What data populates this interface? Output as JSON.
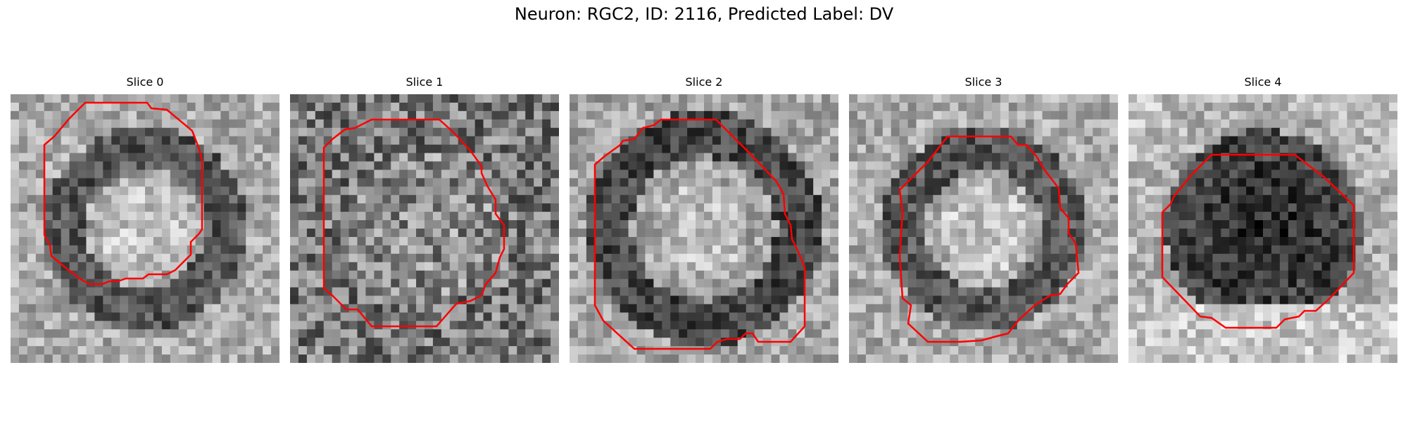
{
  "figure": {
    "title": "Neuron: RGC2, ID: 2116, Predicted Label: DV"
  },
  "colors": {
    "contour": "#ff0000"
  },
  "panels": [
    {
      "title": "Slice 0",
      "seed": 11,
      "variant": "ring",
      "contour_icon": "red-contour-outline"
    },
    {
      "title": "Slice 1",
      "seed": 23,
      "variant": "noisy",
      "contour_icon": "red-contour-outline"
    },
    {
      "title": "Slice 2",
      "seed": 37,
      "variant": "bigring",
      "contour_icon": "red-contour-outline"
    },
    {
      "title": "Slice 3",
      "seed": 51,
      "variant": "ring",
      "contour_icon": "red-contour-outline"
    },
    {
      "title": "Slice 4",
      "seed": 73,
      "variant": "darkcore",
      "contour_icon": "red-contour-outline"
    }
  ]
}
